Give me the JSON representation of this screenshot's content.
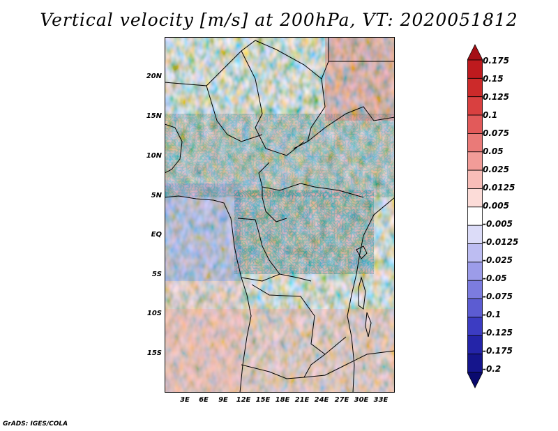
{
  "title": "Vertical velocity [m/s] at 200hPa, VT: 2020051812",
  "credit": "GrADS: IGES/COLA",
  "map": {
    "lat_range": [
      "20S",
      "24N"
    ],
    "lon_range": [
      "0E",
      "35E"
    ],
    "lat_ticks": [
      "20N",
      "15N",
      "10N",
      "5N",
      "EQ",
      "5S",
      "10S",
      "15S"
    ],
    "lon_ticks": [
      "3E",
      "6E",
      "9E",
      "12E",
      "15E",
      "18E",
      "21E",
      "24E",
      "27E",
      "30E",
      "33E"
    ],
    "background_field": "vertical velocity shading"
  },
  "colorbar": {
    "labels": [
      "0.175",
      "0.15",
      "0.125",
      "0.1",
      "0.075",
      "0.05",
      "0.025",
      "0.0125",
      "0.005",
      "-0.005",
      "-0.0125",
      "-0.025",
      "-0.05",
      "-0.075",
      "-0.1",
      "-0.125",
      "-0.175",
      "-0.2"
    ],
    "colors": [
      "#a50f15",
      "#be1a1e",
      "#cc2a2a",
      "#d94040",
      "#e25a5a",
      "#ea7a78",
      "#f29c98",
      "#f8bdb8",
      "#fcdcd8",
      "#ffffff",
      "#dcdcf8",
      "#bdbdf2",
      "#9c9ce9",
      "#7c7cdf",
      "#5c5cd2",
      "#3c3cc2",
      "#2424a8",
      "#15158c",
      "#0a0a6e"
    ]
  }
}
